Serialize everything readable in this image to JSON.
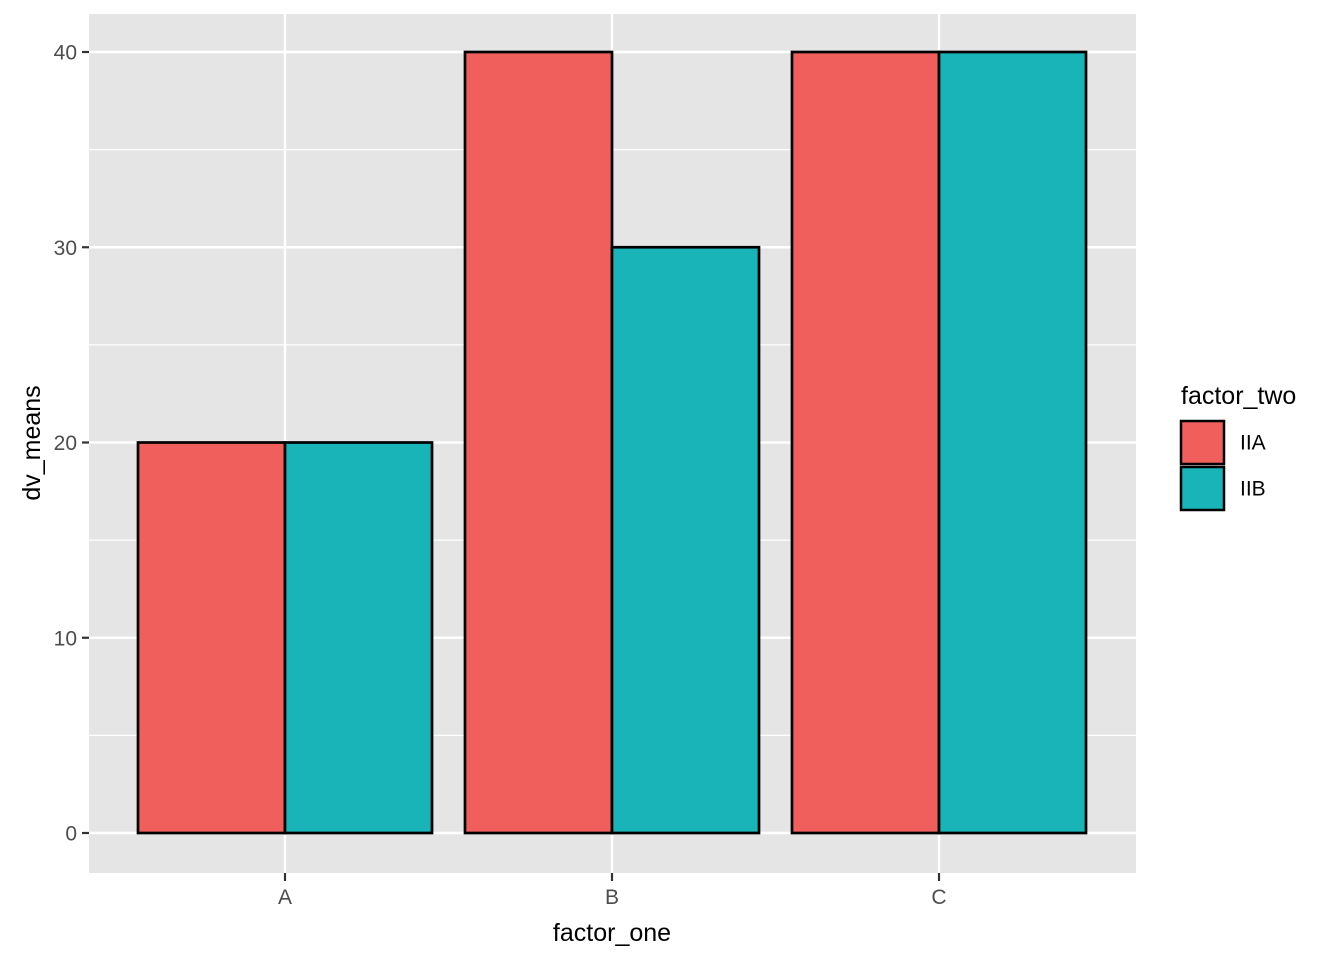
{
  "chart_data": {
    "type": "bar",
    "mode": "grouped-dodge",
    "title": "",
    "xlabel": "factor_one",
    "ylabel": "dv_means",
    "categories": [
      "A",
      "B",
      "C"
    ],
    "series": [
      {
        "name": "IIA",
        "color": "#F15F5D",
        "values": [
          20,
          40,
          40
        ]
      },
      {
        "name": "IIB",
        "color": "#19B4B8",
        "values": [
          20,
          30,
          40
        ]
      }
    ],
    "legend_title": "factor_two",
    "legend_position": "right",
    "ylim": [
      0,
      40
    ],
    "yticks": [
      0,
      10,
      20,
      30,
      40
    ],
    "yticklabels": [
      "0",
      "10",
      "20",
      "30",
      "40"
    ],
    "grid": "white major and minor horizontal lines, white vertical lines at category centers",
    "panel_bg": "#E5E5E5",
    "gridline_color": "#FFFFFF",
    "bar_border_color": "#000000",
    "tick_mark_color": "#333333",
    "tick_label_color": "#4D4D4D",
    "axis_title_color": "#000000",
    "legend_text_color": "#000000"
  }
}
